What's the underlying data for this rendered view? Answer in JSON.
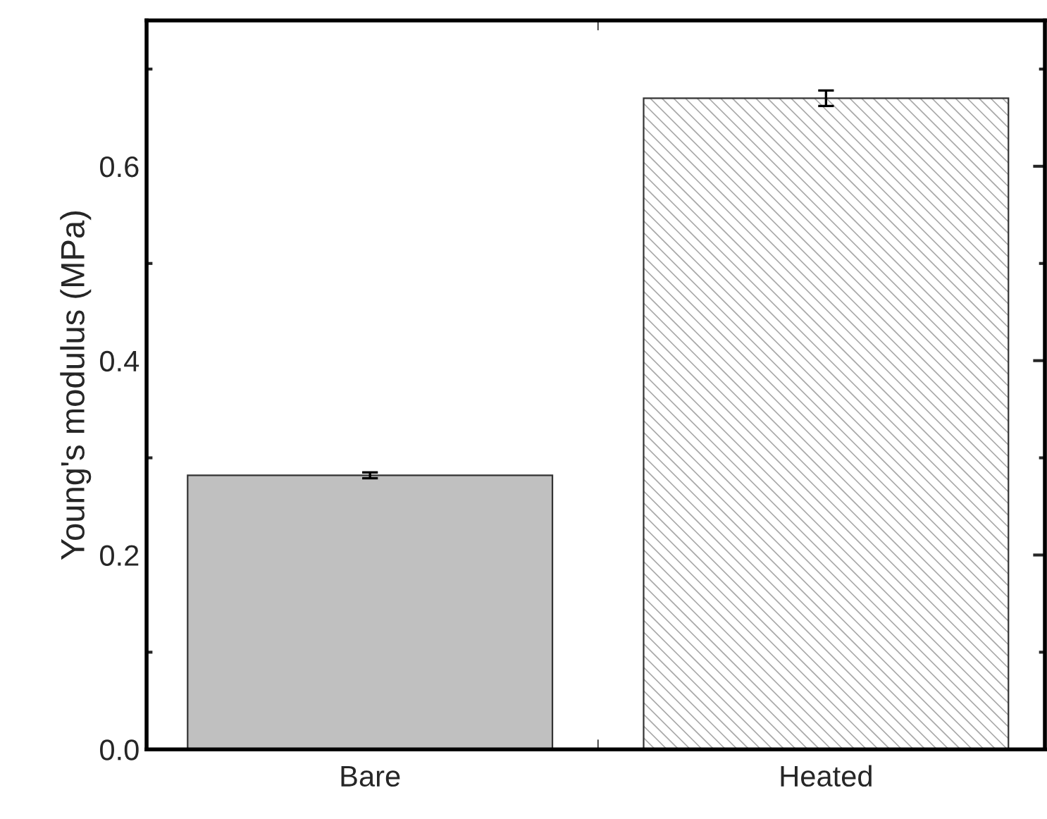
{
  "chart_data": {
    "type": "bar",
    "ylabel": "Young's modulus (MPa)",
    "categories": [
      "Bare",
      "Heated"
    ],
    "values": [
      0.282,
      0.67
    ],
    "errors": [
      0.003,
      0.008
    ],
    "colors": [
      "#c0c0c0",
      "#ffffff"
    ],
    "ylim": [
      0,
      0.75
    ],
    "yticks": [
      {
        "value": 0,
        "label": "0.0"
      },
      0.2,
      0.4,
      0.6
    ],
    "grid": false,
    "legend": false
  }
}
